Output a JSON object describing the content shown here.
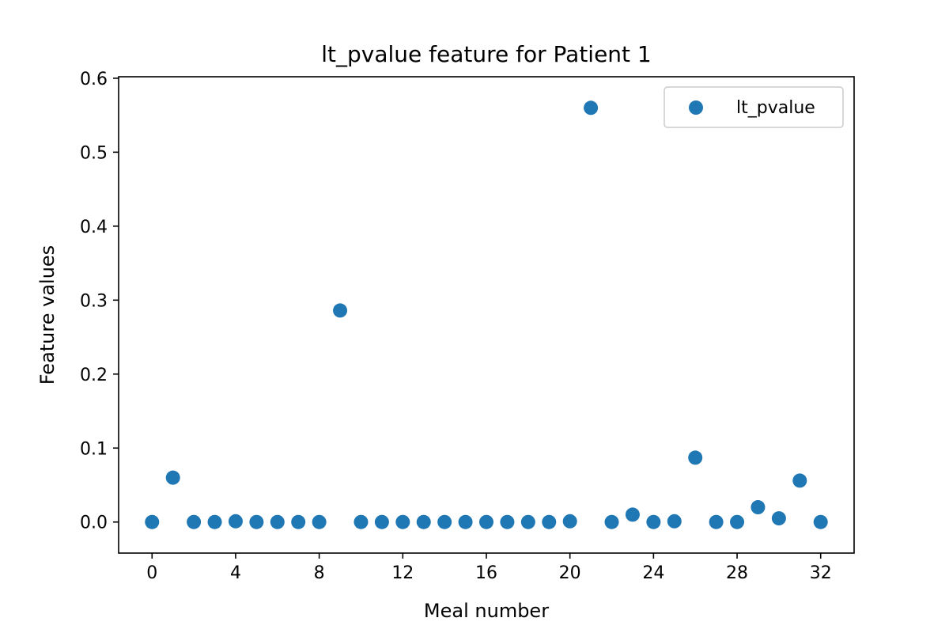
{
  "chart_data": {
    "type": "scatter",
    "title": "lt_pvalue feature for Patient 1",
    "xlabel": "Meal number",
    "ylabel": "Feature values",
    "xlim": [
      -1.6,
      33.6
    ],
    "ylim": [
      -0.042,
      0.602
    ],
    "xticks": [
      0,
      4,
      8,
      12,
      16,
      20,
      24,
      28,
      32
    ],
    "xtick_labels": [
      "0",
      "4",
      "8",
      "12",
      "16",
      "20",
      "24",
      "28",
      "32"
    ],
    "yticks": [
      0.0,
      0.1,
      0.2,
      0.3,
      0.4,
      0.5,
      0.6
    ],
    "ytick_labels": [
      "0.0",
      "0.1",
      "0.2",
      "0.3",
      "0.4",
      "0.5",
      "0.6"
    ],
    "grid": false,
    "legend_position": "top-right",
    "series": [
      {
        "name": "lt_pvalue",
        "color": "#1f77b4",
        "x": [
          0,
          1,
          2,
          3,
          4,
          5,
          6,
          7,
          8,
          9,
          10,
          11,
          12,
          13,
          14,
          15,
          16,
          17,
          18,
          19,
          20,
          21,
          22,
          23,
          24,
          25,
          26,
          27,
          28,
          29,
          30,
          31,
          32
        ],
        "y": [
          0.0,
          0.06,
          0.0,
          0.0,
          0.001,
          0.0,
          0.0,
          0.0,
          0.0,
          0.286,
          0.0,
          0.0,
          0.0,
          0.0,
          0.0,
          0.0,
          0.0,
          0.0,
          0.0,
          0.0,
          0.001,
          0.56,
          0.0,
          0.01,
          0.0,
          0.001,
          0.087,
          0.0,
          0.0,
          0.02,
          0.005,
          0.056,
          0.0
        ]
      }
    ]
  }
}
